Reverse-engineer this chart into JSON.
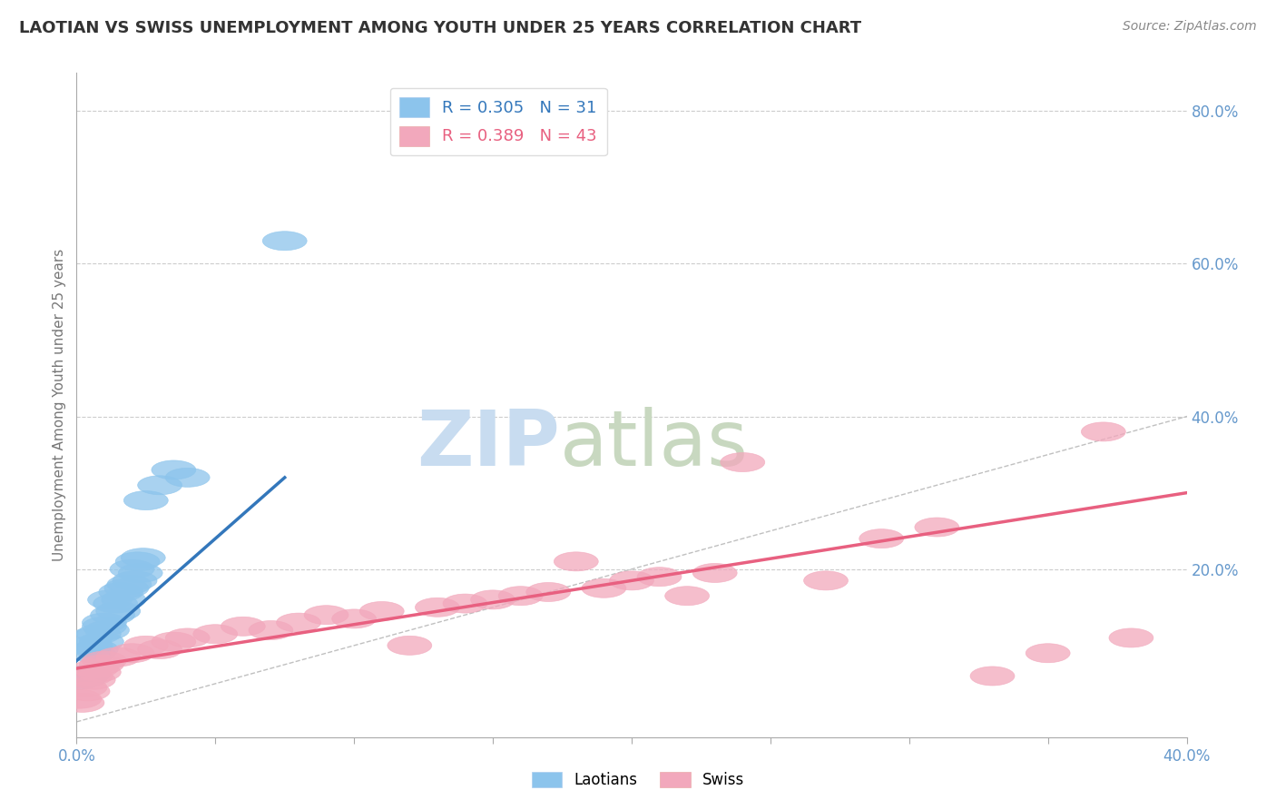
{
  "title": "LAOTIAN VS SWISS UNEMPLOYMENT AMONG YOUTH UNDER 25 YEARS CORRELATION CHART",
  "source": "Source: ZipAtlas.com",
  "ylabel": "Unemployment Among Youth under 25 years",
  "xlabel": "",
  "laotian_R": 0.305,
  "laotian_N": 31,
  "swiss_R": 0.389,
  "swiss_N": 43,
  "xlim": [
    0.0,
    0.4
  ],
  "ylim": [
    -0.02,
    0.85
  ],
  "xtick_positions": [
    0.0,
    0.05,
    0.1,
    0.15,
    0.2,
    0.25,
    0.3,
    0.35,
    0.4
  ],
  "xtick_labels": [
    "0.0%",
    "",
    "",
    "",
    "",
    "",
    "",
    "",
    "40.0%"
  ],
  "yticks_right": [
    0.2,
    0.4,
    0.6,
    0.8
  ],
  "laotian_color": "#8CC4EC",
  "swiss_color": "#F2A8BC",
  "laotian_line_color": "#3377BB",
  "swiss_line_color": "#E86080",
  "background_color": "#FFFFFF",
  "grid_color": "#CCCCCC",
  "title_color": "#333333",
  "tick_label_color": "#6699CC",
  "laotian_x": [
    0.001,
    0.002,
    0.003,
    0.004,
    0.005,
    0.005,
    0.006,
    0.007,
    0.008,
    0.009,
    0.01,
    0.01,
    0.011,
    0.012,
    0.013,
    0.014,
    0.015,
    0.016,
    0.017,
    0.018,
    0.019,
    0.02,
    0.021,
    0.022,
    0.023,
    0.024,
    0.025,
    0.03,
    0.035,
    0.04,
    0.075
  ],
  "laotian_y": [
    0.055,
    0.06,
    0.058,
    0.062,
    0.1,
    0.11,
    0.09,
    0.095,
    0.115,
    0.105,
    0.125,
    0.13,
    0.12,
    0.16,
    0.14,
    0.155,
    0.145,
    0.17,
    0.16,
    0.175,
    0.18,
    0.2,
    0.185,
    0.21,
    0.195,
    0.215,
    0.29,
    0.31,
    0.33,
    0.32,
    0.63
  ],
  "swiss_x": [
    0.001,
    0.002,
    0.003,
    0.004,
    0.005,
    0.006,
    0.007,
    0.008,
    0.009,
    0.01,
    0.015,
    0.02,
    0.025,
    0.03,
    0.035,
    0.04,
    0.05,
    0.06,
    0.07,
    0.08,
    0.09,
    0.1,
    0.11,
    0.12,
    0.13,
    0.14,
    0.15,
    0.16,
    0.17,
    0.18,
    0.19,
    0.2,
    0.21,
    0.22,
    0.23,
    0.24,
    0.27,
    0.29,
    0.31,
    0.33,
    0.35,
    0.37,
    0.38
  ],
  "swiss_y": [
    0.03,
    0.025,
    0.045,
    0.04,
    0.06,
    0.055,
    0.07,
    0.065,
    0.075,
    0.08,
    0.085,
    0.09,
    0.1,
    0.095,
    0.105,
    0.11,
    0.115,
    0.125,
    0.12,
    0.13,
    0.14,
    0.135,
    0.145,
    0.1,
    0.15,
    0.155,
    0.16,
    0.165,
    0.17,
    0.21,
    0.175,
    0.185,
    0.19,
    0.165,
    0.195,
    0.34,
    0.185,
    0.24,
    0.255,
    0.06,
    0.09,
    0.38,
    0.11
  ],
  "laotian_line_x": [
    0.0,
    0.075
  ],
  "laotian_line_y": [
    0.08,
    0.32
  ],
  "swiss_line_x": [
    0.0,
    0.4
  ],
  "swiss_line_y": [
    0.07,
    0.3
  ]
}
